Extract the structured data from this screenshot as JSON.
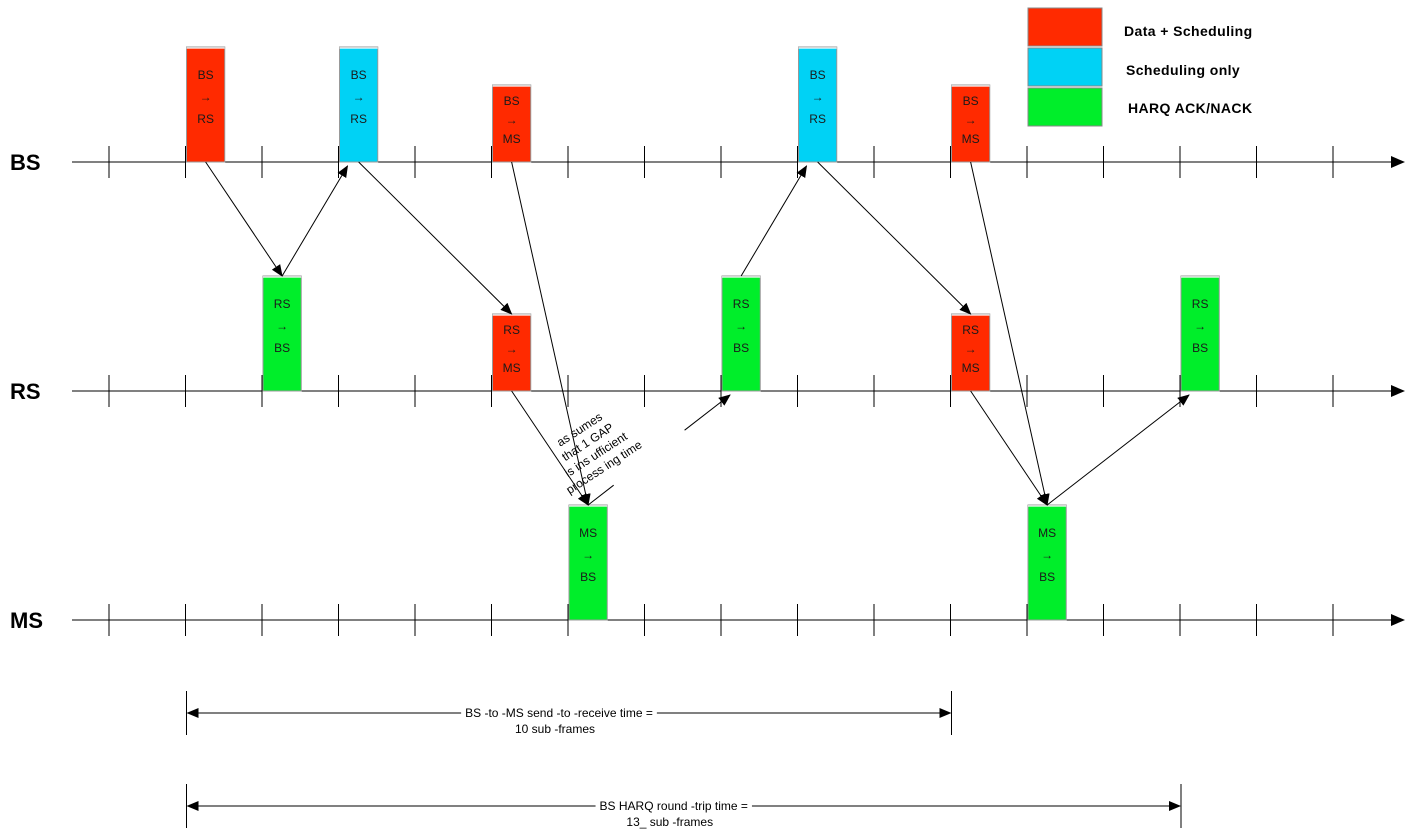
{
  "colors": {
    "data_scheduling": "#ff2a00",
    "scheduling_only": "#00d2f5",
    "harq": "#00ee2a",
    "line": "#000000"
  },
  "legend": [
    {
      "label": "Data  + Scheduling",
      "color_key": "data_scheduling"
    },
    {
      "label": "Scheduling only",
      "color_key": "scheduling_only"
    },
    {
      "label": "HARQ ACK/NACK",
      "color_key": "harq"
    }
  ],
  "timelines": [
    {
      "id": "bs",
      "label": "BS"
    },
    {
      "id": "rs",
      "label": "RS"
    },
    {
      "id": "ms",
      "label": "MS"
    }
  ],
  "blocks": [
    {
      "id": "b1",
      "line": "bs",
      "slot": 1,
      "tall": true,
      "color_key": "data_scheduling",
      "lines": [
        "BS",
        "→",
        "RS"
      ]
    },
    {
      "id": "b2",
      "line": "bs",
      "slot": 3,
      "tall": true,
      "color_key": "scheduling_only",
      "lines": [
        "BS",
        "→",
        "RS"
      ]
    },
    {
      "id": "b3",
      "line": "bs",
      "slot": 5,
      "tall": false,
      "color_key": "data_scheduling",
      "lines": [
        "BS",
        "→",
        "MS"
      ]
    },
    {
      "id": "b4",
      "line": "bs",
      "slot": 9,
      "tall": true,
      "color_key": "scheduling_only",
      "lines": [
        "BS",
        "→",
        "RS"
      ]
    },
    {
      "id": "b5",
      "line": "bs",
      "slot": 11,
      "tall": false,
      "color_key": "data_scheduling",
      "lines": [
        "BS",
        "→",
        "MS"
      ]
    },
    {
      "id": "r1",
      "line": "rs",
      "slot": 2,
      "tall": true,
      "color_key": "harq",
      "lines": [
        "RS",
        "→",
        "BS"
      ]
    },
    {
      "id": "r2",
      "line": "rs",
      "slot": 5,
      "tall": false,
      "color_key": "data_scheduling",
      "lines": [
        "RS",
        "→",
        "MS"
      ]
    },
    {
      "id": "r3",
      "line": "rs",
      "slot": 8,
      "tall": true,
      "color_key": "harq",
      "lines": [
        "RS",
        "→",
        "BS"
      ]
    },
    {
      "id": "r4",
      "line": "rs",
      "slot": 11,
      "tall": false,
      "color_key": "data_scheduling",
      "lines": [
        "RS",
        "→",
        "MS"
      ]
    },
    {
      "id": "r5",
      "line": "rs",
      "slot": 14,
      "tall": true,
      "color_key": "harq",
      "lines": [
        "RS",
        "→",
        "BS"
      ]
    },
    {
      "id": "m1",
      "line": "ms",
      "slot": 6,
      "tall": true,
      "color_key": "harq",
      "lines": [
        "MS",
        "→",
        "BS"
      ]
    },
    {
      "id": "m2",
      "line": "ms",
      "slot": 12,
      "tall": true,
      "color_key": "harq",
      "lines": [
        "MS",
        "→",
        "BS"
      ]
    }
  ],
  "arrows": [
    {
      "from": "b1",
      "to": "r1"
    },
    {
      "from": "r1",
      "to": "b2"
    },
    {
      "from": "b2",
      "to": "r2"
    },
    {
      "from": "r2",
      "to": "m1"
    },
    {
      "from": "b3",
      "to": "m1"
    },
    {
      "from": "m1",
      "to": "r3",
      "note": true
    },
    {
      "from": "r3",
      "to": "b4"
    },
    {
      "from": "b4",
      "to": "r4"
    },
    {
      "from": "r4",
      "to": "m2"
    },
    {
      "from": "b5",
      "to": "m2"
    },
    {
      "from": "m2",
      "to": "r5"
    }
  ],
  "note": {
    "lines": [
      "as sumes",
      "that 1 GAP",
      "is ins ufficient",
      "process ing time"
    ]
  },
  "measurements": [
    {
      "id": "send_to_receive",
      "from_slot": 1,
      "to_slot": 11,
      "line1": "BS -to -MS send  -to -receive time     =",
      "line2": "10 sub -frames"
    },
    {
      "id": "round_trip",
      "from_slot": 1,
      "to_slot": 14,
      "line1": "BS HARQ round  -trip time    =",
      "line2": "13_ sub -frames"
    }
  ]
}
